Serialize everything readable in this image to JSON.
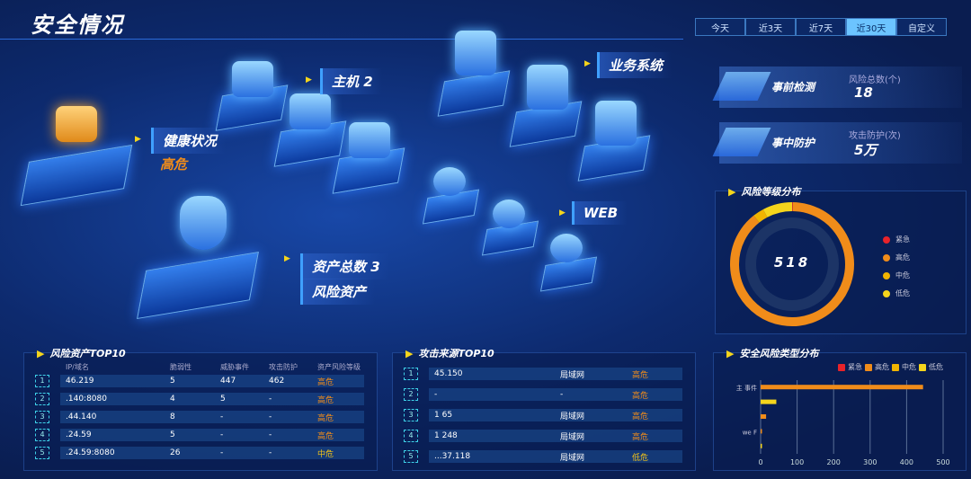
{
  "header": {
    "title": "安全情况"
  },
  "tabs": [
    {
      "label": "今天"
    },
    {
      "label": "近3天"
    },
    {
      "label": "近7天"
    },
    {
      "label": "近30天",
      "active": true
    },
    {
      "label": "自定义"
    }
  ],
  "scene": {
    "host": "主机 2",
    "business": "业务系统",
    "web": "WEB",
    "health_label": "健康状况",
    "health_value": "高危",
    "assets_total": "资产总数  3",
    "risk_assets": "风险资产"
  },
  "stats": [
    {
      "name": "事前检测",
      "key": "风险总数(个)",
      "value": "18"
    },
    {
      "name": "事中防护",
      "key": "攻击防护(次)",
      "value": "5万"
    }
  ],
  "colors": {
    "urgent": "#e8232a",
    "high": "#f08c1a",
    "medium": "#f0b400",
    "low": "#f5d51c"
  },
  "risk_level": {
    "title": "风险等级分布",
    "total": "518",
    "legend": [
      "紧急",
      "高危",
      "中危",
      "低危"
    ],
    "chart_data": {
      "type": "pie",
      "categories": [
        "紧急",
        "高危",
        "中危",
        "低危"
      ],
      "values": [
        1,
        462,
        15,
        40
      ]
    }
  },
  "risk_assets_top": {
    "title": "风险资产TOP10",
    "headers": [
      "IP/域名",
      "脆弱性",
      "威胁事件",
      "攻击防护",
      "资产风险等级"
    ],
    "rows": [
      [
        "1",
        "46.219",
        "5",
        "447",
        "462",
        "高危"
      ],
      [
        "2",
        ".140:8080",
        "4",
        "5",
        "-",
        "高危"
      ],
      [
        "3",
        ".44.140",
        "8",
        "-",
        "-",
        "高危"
      ],
      [
        "4",
        ".24.59",
        "5",
        "-",
        "-",
        "高危"
      ],
      [
        "5",
        ".24.59:8080",
        "26",
        "-",
        "-",
        "中危"
      ]
    ]
  },
  "attack_source_top": {
    "title": "攻击来源TOP10",
    "rows": [
      [
        "1",
        "45.150",
        "局域网",
        "高危"
      ],
      [
        "2",
        "-",
        "-",
        "高危"
      ],
      [
        "3",
        "1      65",
        "局域网",
        "高危"
      ],
      [
        "4",
        "1      248",
        "局域网",
        "高危"
      ],
      [
        "5",
        "...37.118",
        "局域网",
        "低危"
      ]
    ]
  },
  "risk_type": {
    "title": "安全风险类型分布",
    "legend": [
      "紧急",
      "高危",
      "中危",
      "低危"
    ],
    "chart_data": {
      "type": "bar",
      "orientation": "horizontal",
      "categories": [
        "主    事件",
        "",
        "",
        "we    F",
        ""
      ],
      "series": [
        {
          "name": "高危",
          "values": [
            445,
            0,
            15,
            3,
            0
          ]
        },
        {
          "name": "低危",
          "values": [
            0,
            43,
            0,
            0,
            2
          ]
        }
      ],
      "xlim": [
        0,
        500
      ],
      "xticks": [
        0,
        100,
        200,
        300,
        400,
        500
      ],
      "grid": true,
      "legend_position": "top-right"
    }
  }
}
